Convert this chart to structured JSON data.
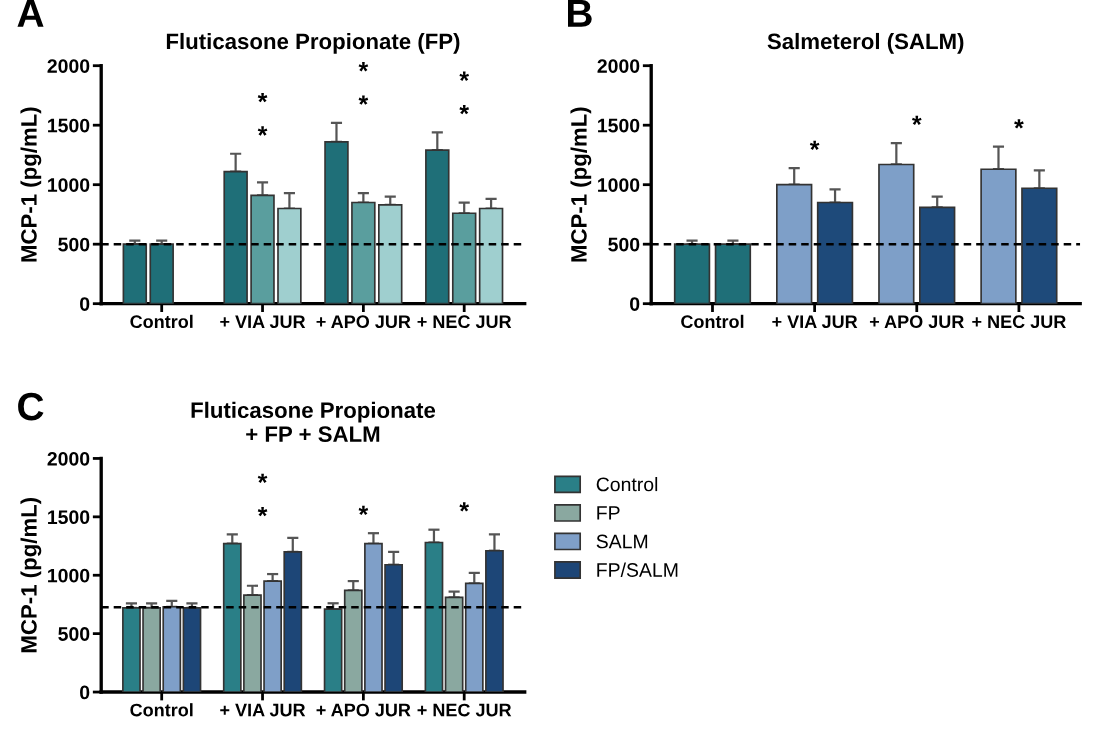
{
  "chart_data": [
    {
      "type": "bar",
      "title": "Fluticasone Propionate (FP)",
      "ylabel": "MCP-1 (pg/mL)",
      "categories": [
        "Control",
        "+ VIA JUR",
        "+ APO JUR",
        "+ NEC JUR"
      ],
      "series": [
        {
          "color": "#1f6f78",
          "values": [
            500,
            1110,
            1360,
            1290
          ],
          "errors": [
            30,
            150,
            160,
            150
          ]
        },
        {
          "color": "#5a9e9e",
          "colors": [
            "#1f6f78",
            "#5a9e9e",
            "#5a9e9e",
            "#5a9e9e"
          ],
          "values": [
            500,
            910,
            850,
            760
          ],
          "errors": [
            30,
            110,
            80,
            90
          ]
        },
        {
          "color": "#9fcfcf",
          "values": [
            null,
            800,
            830,
            800
          ],
          "errors": [
            null,
            130,
            70,
            80
          ]
        }
      ],
      "ylim": [
        0,
        2000
      ],
      "yticks": [
        0,
        500,
        1000,
        1500,
        2000
      ],
      "grid": false,
      "legend": false,
      "ref_lines": [
        {
          "axis": "y",
          "value": 500,
          "line_style": "dashed",
          "color": "#000000"
        }
      ],
      "annotations": [
        "A",
        "*",
        "*",
        "*",
        "*",
        "*",
        "*"
      ]
    },
    {
      "type": "bar",
      "title": "Salmeterol (SALM)",
      "ylabel": "MCP-1 (pg/mL)",
      "categories": [
        "Control",
        "+ VIA JUR",
        "+ APO JUR",
        "+ NEC JUR"
      ],
      "series": [
        {
          "color": "#7e9fc8",
          "colors": [
            "#1f6f78",
            "#7e9fc8",
            "#7e9fc8",
            "#7e9fc8"
          ],
          "values": [
            500,
            1000,
            1170,
            1130
          ],
          "errors": [
            30,
            140,
            180,
            190
          ]
        },
        {
          "color": "#1e4a7a",
          "colors": [
            "#1f6f78",
            "#1e4a7a",
            "#1e4a7a",
            "#1e4a7a"
          ],
          "values": [
            500,
            850,
            810,
            970
          ],
          "errors": [
            30,
            110,
            90,
            150
          ]
        }
      ],
      "ylim": [
        0,
        2000
      ],
      "yticks": [
        0,
        500,
        1000,
        1500,
        2000
      ],
      "grid": false,
      "legend": false,
      "ref_lines": [
        {
          "axis": "y",
          "value": 500,
          "line_style": "dashed",
          "color": "#000000"
        }
      ],
      "annotations": [
        "B",
        "*",
        "*",
        "*"
      ]
    },
    {
      "type": "bar",
      "title": "Fluticasone Propionate\n+ FP + SALM",
      "ylabel": "MCP-1 (pg/mL)",
      "categories": [
        "Control",
        "+ VIA JUR",
        "+ APO JUR",
        "+ NEC JUR"
      ],
      "series": [
        {
          "name": "Control",
          "color": "#2a7f87",
          "values": [
            720,
            1270,
            710,
            1280
          ],
          "errors": [
            40,
            80,
            50,
            110
          ]
        },
        {
          "name": "FP",
          "color": "#8aa8a0",
          "values": [
            720,
            830,
            870,
            810
          ],
          "errors": [
            40,
            80,
            80,
            50
          ]
        },
        {
          "name": "SALM",
          "color": "#7f9fc8",
          "values": [
            730,
            950,
            1270,
            930
          ],
          "errors": [
            50,
            60,
            90,
            90
          ]
        },
        {
          "name": "FP/SALM",
          "color": "#1d4677",
          "values": [
            720,
            1200,
            1090,
            1210
          ],
          "errors": [
            40,
            120,
            110,
            140
          ]
        }
      ],
      "ylim": [
        0,
        2000
      ],
      "yticks": [
        0,
        500,
        1000,
        1500,
        2000
      ],
      "grid": false,
      "legend": "right",
      "ref_lines": [
        {
          "axis": "y",
          "value": 725,
          "line_style": "dashed",
          "color": "#000000"
        }
      ],
      "annotations": [
        "C",
        "*",
        "*",
        "*",
        "*"
      ]
    }
  ]
}
